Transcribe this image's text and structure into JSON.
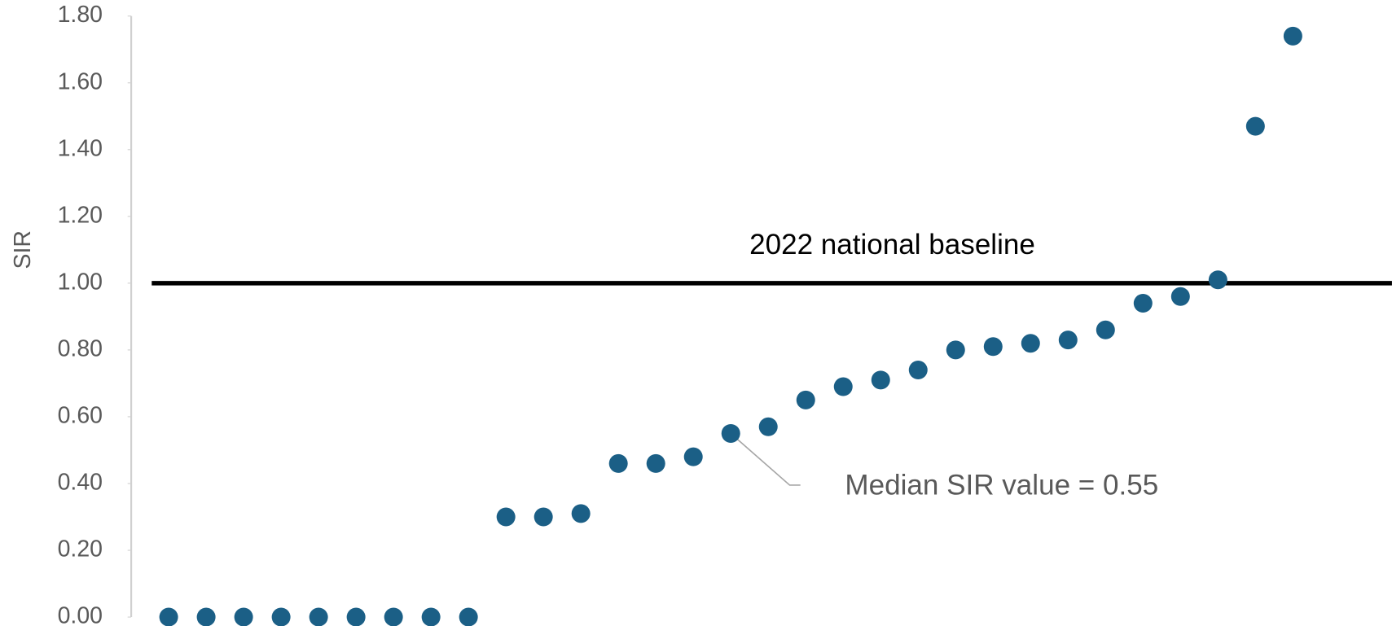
{
  "chart_data": {
    "type": "scatter",
    "y_label": "SIR",
    "values": [
      0,
      0,
      0,
      0,
      0,
      0,
      0,
      0,
      0,
      0.3,
      0.3,
      0.31,
      0.46,
      0.46,
      0.48,
      0.55,
      0.57,
      0.65,
      0.69,
      0.71,
      0.74,
      0.8,
      0.81,
      0.82,
      0.83,
      0.86,
      0.94,
      0.96,
      1.01,
      1.47,
      1.74
    ],
    "color": "#1b5f86",
    "ylim": [
      0,
      1.8
    ],
    "yticks": [
      {
        "value": 0,
        "label": "0.00"
      },
      {
        "value": 0.2,
        "label": "0.20"
      },
      {
        "value": 0.4,
        "label": "0.40"
      },
      {
        "value": 0.6,
        "label": "0.60"
      },
      {
        "value": 0.8,
        "label": "0.80"
      },
      {
        "value": 1,
        "label": "1.00"
      },
      {
        "value": 1.2,
        "label": "1.20"
      },
      {
        "value": 1.4,
        "label": "1.40"
      },
      {
        "value": 1.6,
        "label": "1.60"
      },
      {
        "value": 1.8,
        "label": "1.80"
      }
    ],
    "grid": false,
    "reference_line": {
      "value": 1,
      "label": "2022 national baseline"
    },
    "annotation": "Median SIR value = 0.55"
  }
}
